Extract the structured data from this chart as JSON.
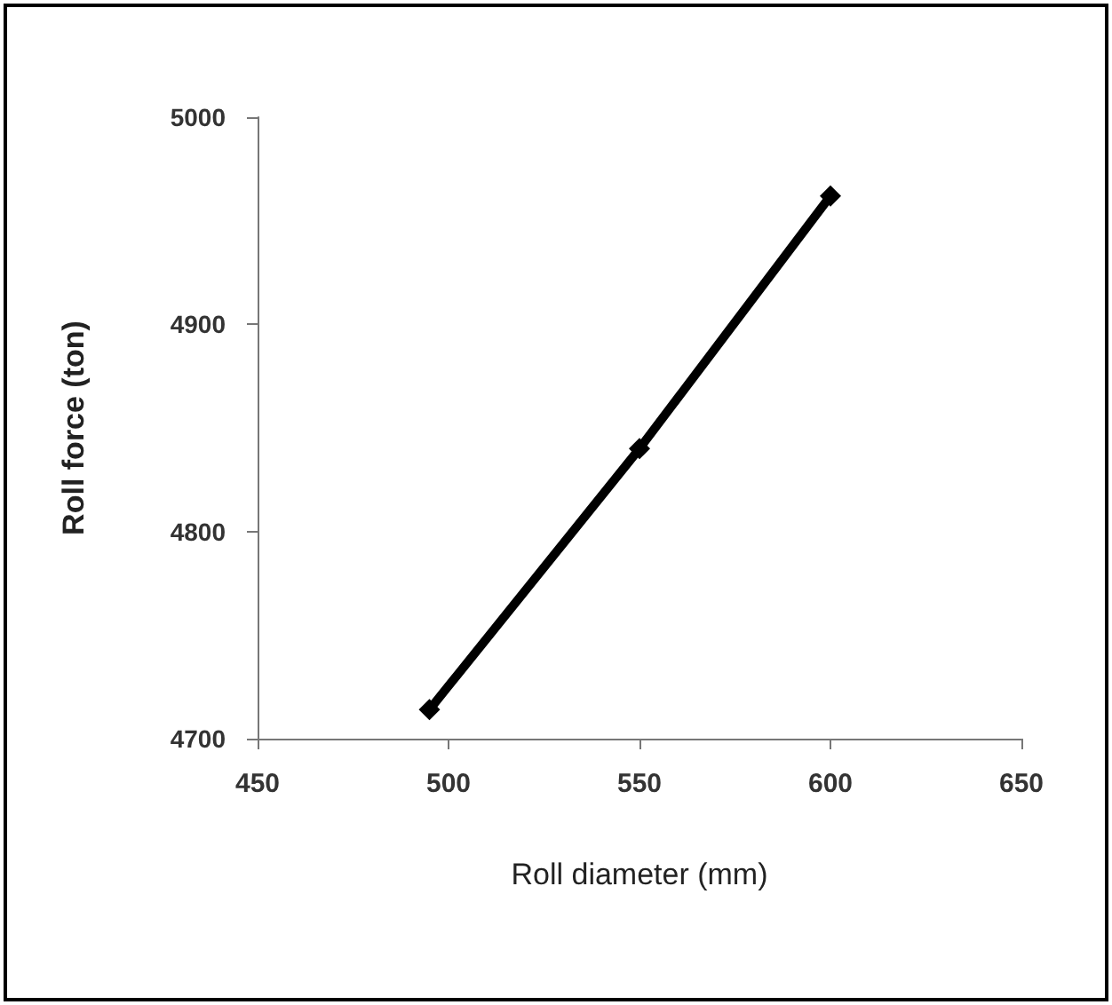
{
  "chart_data": {
    "type": "line",
    "xlabel": "Roll diameter (mm)",
    "ylabel": "Roll force (ton)",
    "x": [
      495,
      550,
      600
    ],
    "series": [
      {
        "color": "#000000",
        "values": [
          4714,
          4840,
          4962
        ]
      }
    ],
    "xlim": [
      450,
      650
    ],
    "xticks": [
      450,
      500,
      550,
      600,
      650
    ],
    "ylim": [
      4700,
      5000
    ],
    "yticks": [
      4700,
      4800,
      4900,
      5000
    ],
    "grid": false,
    "marker": "diamond",
    "line_style": "solid"
  }
}
